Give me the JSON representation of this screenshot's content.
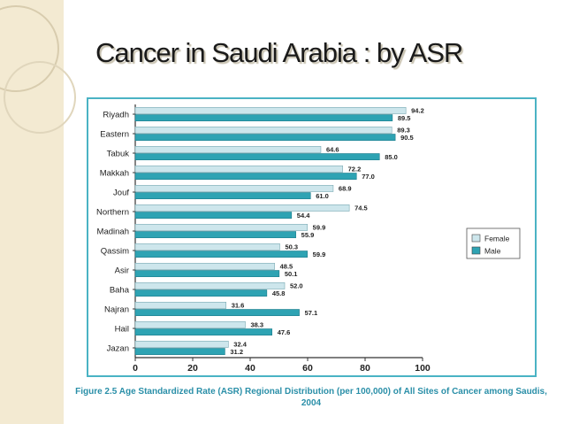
{
  "slide": {
    "title": "Cancer in Saudi Arabia : by ASR"
  },
  "chart_data": {
    "type": "bar",
    "orientation": "horizontal",
    "categories": [
      "Riyadh",
      "Eastern",
      "Tabuk",
      "Makkah",
      "Jouf",
      "Northern",
      "Madinah",
      "Qassim",
      "Asir",
      "Baha",
      "Najran",
      "Hail",
      "Jazan"
    ],
    "series": [
      {
        "name": "Female",
        "color": "#cde6ec",
        "values": [
          94.2,
          89.3,
          64.6,
          72.2,
          68.9,
          74.5,
          59.9,
          50.3,
          48.5,
          52.0,
          31.6,
          38.3,
          32.4
        ]
      },
      {
        "name": "Male",
        "color": "#2ea3b3",
        "values": [
          89.5,
          90.5,
          85.0,
          77.0,
          61.0,
          54.4,
          55.9,
          59.9,
          50.1,
          45.8,
          57.1,
          47.6,
          31.2
        ]
      }
    ],
    "xlim": [
      0,
      100
    ],
    "xticks": [
      0,
      20,
      40,
      60,
      80,
      100
    ],
    "legend_position": "right",
    "caption": "Figure 2.5 Age Standardized Rate (ASR) Regional Distribution (per 100,000) of All Sites of Cancer among Saudis, 2004"
  }
}
